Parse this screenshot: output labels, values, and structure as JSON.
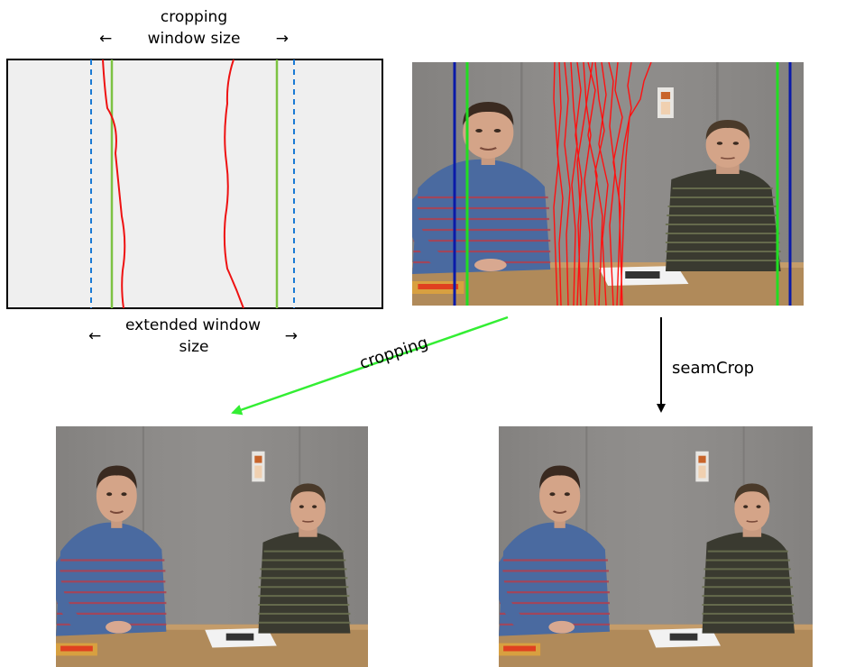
{
  "labels": {
    "cropping_window_line1": "cropping",
    "cropping_window_line2": "window size",
    "extended_window_line1": "extended window",
    "extended_window_line2": "size",
    "arrow_left": "←",
    "arrow_right": "→",
    "cropping_arrow": "cropping",
    "seamcrop_arrow": "seamCrop"
  },
  "colors": {
    "seam_red": "#ee1111",
    "crop_window_green": "#7cc242",
    "extended_window_blue": "#1a7ad4",
    "frame_green": "#22dd22",
    "frame_blue": "#0a1aa8",
    "cropping_arrow_green": "#33ee33"
  },
  "icons": {
    "left_arrow": "left-arrow-icon",
    "right_arrow": "right-arrow-icon"
  }
}
